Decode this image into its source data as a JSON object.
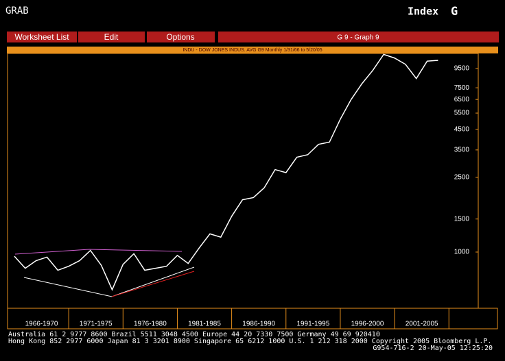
{
  "header": {
    "left": "GRAB",
    "label": "Index",
    "key": "G"
  },
  "menu": {
    "items": [
      "Worksheet List",
      "Edit",
      "Options"
    ],
    "graph_title": "G 9 - Graph 9"
  },
  "chart_data": {
    "type": "line",
    "title": "INDU - DOW JONES INDUS. AVG G9 Monthly 1/31/66 to 5/20/05",
    "log_scale": true,
    "categories": [
      "1966-1970",
      "1971-1975",
      "1976-1980",
      "1981-1985",
      "1986-1990",
      "1991-1995",
      "1996-2000",
      "2001-2005"
    ],
    "x": [
      1966,
      1967,
      1968,
      1969,
      1970,
      1971,
      1972,
      1973,
      1974,
      1975,
      1976,
      1977,
      1978,
      1979,
      1980,
      1981,
      1982,
      1983,
      1984,
      1985,
      1986,
      1987,
      1988,
      1989,
      1990,
      1991,
      1992,
      1993,
      1994,
      1995,
      1996,
      1997,
      1998,
      1999,
      2000,
      2001,
      2002,
      2003,
      2004,
      2005
    ],
    "xlim": [
      1965.37,
      2008.7
    ],
    "series": [
      {
        "color": "#ffffff",
        "values": [
          950,
          820,
          900,
          940,
          800,
          840,
          900,
          1020,
          850,
          630,
          860,
          980,
          800,
          820,
          840,
          960,
          870,
          1050,
          1250,
          1200,
          1550,
          1900,
          1950,
          2200,
          2750,
          2650,
          3200,
          3300,
          3750,
          3850,
          5100,
          6500,
          7900,
          9300,
          11300,
          10800,
          10000,
          8400,
          10400,
          10500
        ]
      }
    ],
    "ylim": [
      502,
      11430
    ],
    "yticks": [
      1000,
      1500,
      2500,
      3500,
      4500,
      5500,
      6500,
      7500,
      9500
    ]
  },
  "footer": {
    "lines": [
      "Australia 61 2 9777 8600        Brazil 5511 3048 4500        Europe 44 20 7330 7500        Germany 49 69 920410",
      "Hong Kong 852 2977 6000 Japan 81 3 3201 8900 Singapore 65 6212 1000 U.S. 1 212 318 2000 Copyright 2005 Bloomberg L.P.",
      "G954-716-2 20-May-05 12:25:20"
    ]
  }
}
